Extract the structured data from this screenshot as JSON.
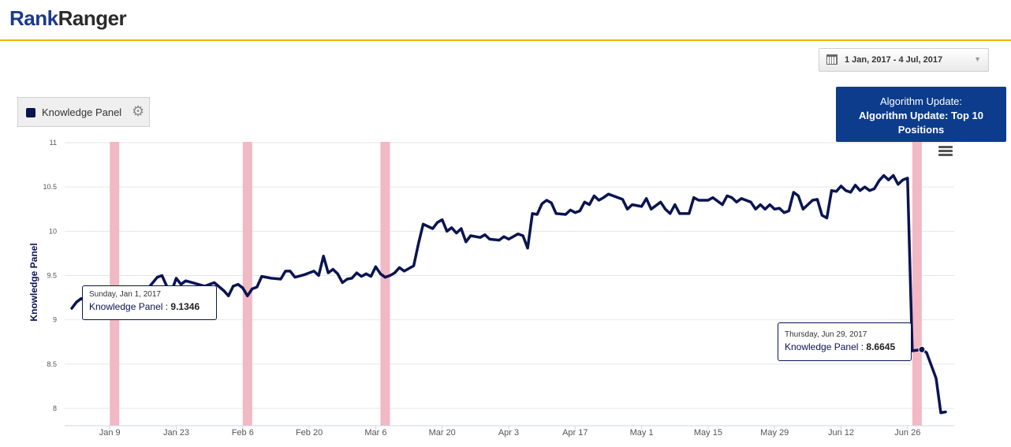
{
  "header": {
    "logo_rank": "Rank",
    "logo_ranger": "Ranger"
  },
  "date_range": {
    "label": "1 Jan, 2017 - 4 Jul, 2017"
  },
  "legend": {
    "label": "Knowledge Panel",
    "color": "#0a1451"
  },
  "algorithm_tooltip": {
    "line1": "Algorithm Update:",
    "line2": "Algorithm Update: Top 10 Positions"
  },
  "tooltips": [
    {
      "date": "Sunday, Jan 1, 2017",
      "series": "Knowledge Panel",
      "sep": " : ",
      "value": "9.1346"
    },
    {
      "date": "Thursday, Jun 29, 2017",
      "series": "Knowledge Panel",
      "sep": " : ",
      "value": "8.6645"
    }
  ],
  "chart_data": {
    "type": "line",
    "ylabel": "Knowledge Panel",
    "xlabel": "",
    "ylim": [
      7.9,
      11
    ],
    "yticks": [
      8,
      8.5,
      9,
      9.5,
      10,
      10.5,
      11
    ],
    "yticks_labels": [
      "8",
      "8.5",
      "9",
      "9.5",
      "10",
      "10.5",
      "11"
    ],
    "x_start": "2017-01-01",
    "x_end": "2017-07-04",
    "xticks": [
      "2017-01-09",
      "2017-01-23",
      "2017-02-06",
      "2017-02-20",
      "2017-03-06",
      "2017-03-20",
      "2017-04-03",
      "2017-04-17",
      "2017-05-01",
      "2017-05-15",
      "2017-05-29",
      "2017-06-12",
      "2017-06-26"
    ],
    "xtick_labels": [
      "Jan 9",
      "Jan 23",
      "Feb 6",
      "Feb 20",
      "Mar 6",
      "Mar 20",
      "Apr 3",
      "Apr 17",
      "May 1",
      "May 15",
      "May 29",
      "Jun 12",
      "Jun 26"
    ],
    "algorithm_updates": [
      "2017-01-10",
      "2017-02-07",
      "2017-03-08",
      "2017-06-28"
    ],
    "update_color": "#f2b8c3",
    "grid": true,
    "series": [
      {
        "name": "Knowledge Panel",
        "color": "#0a1451",
        "points": [
          [
            "2017-01-01",
            9.13
          ],
          [
            "2017-01-02",
            9.2
          ],
          [
            "2017-01-03",
            9.24
          ],
          [
            "2017-01-05",
            9.2
          ],
          [
            "2017-01-07",
            9.26
          ],
          [
            "2017-01-09",
            9.22
          ],
          [
            "2017-01-11",
            9.28
          ],
          [
            "2017-01-13",
            9.3
          ],
          [
            "2017-01-15",
            9.33
          ],
          [
            "2017-01-17",
            9.35
          ],
          [
            "2017-01-19",
            9.48
          ],
          [
            "2017-01-20",
            9.5
          ],
          [
            "2017-01-21",
            9.38
          ],
          [
            "2017-01-22",
            9.32
          ],
          [
            "2017-01-23",
            9.47
          ],
          [
            "2017-01-24",
            9.4
          ],
          [
            "2017-01-25",
            9.44
          ],
          [
            "2017-01-27",
            9.41
          ],
          [
            "2017-01-29",
            9.38
          ],
          [
            "2017-01-31",
            9.42
          ],
          [
            "2017-02-02",
            9.33
          ],
          [
            "2017-02-03",
            9.27
          ],
          [
            "2017-02-04",
            9.38
          ],
          [
            "2017-02-05",
            9.4
          ],
          [
            "2017-02-06",
            9.36
          ],
          [
            "2017-02-07",
            9.27
          ],
          [
            "2017-02-08",
            9.35
          ],
          [
            "2017-02-09",
            9.37
          ],
          [
            "2017-02-10",
            9.49
          ],
          [
            "2017-02-12",
            9.47
          ],
          [
            "2017-02-14",
            9.46
          ],
          [
            "2017-02-15",
            9.55
          ],
          [
            "2017-02-16",
            9.55
          ],
          [
            "2017-02-17",
            9.48
          ],
          [
            "2017-02-19",
            9.51
          ],
          [
            "2017-02-21",
            9.55
          ],
          [
            "2017-02-22",
            9.5
          ],
          [
            "2017-02-23",
            9.72
          ],
          [
            "2017-02-24",
            9.53
          ],
          [
            "2017-02-25",
            9.57
          ],
          [
            "2017-02-26",
            9.52
          ],
          [
            "2017-02-27",
            9.42
          ],
          [
            "2017-02-28",
            9.46
          ],
          [
            "2017-03-01",
            9.47
          ],
          [
            "2017-03-02",
            9.53
          ],
          [
            "2017-03-03",
            9.49
          ],
          [
            "2017-03-04",
            9.52
          ],
          [
            "2017-03-05",
            9.49
          ],
          [
            "2017-03-06",
            9.6
          ],
          [
            "2017-03-07",
            9.52
          ],
          [
            "2017-03-08",
            9.48
          ],
          [
            "2017-03-09",
            9.5
          ],
          [
            "2017-03-10",
            9.53
          ],
          [
            "2017-03-11",
            9.59
          ],
          [
            "2017-03-12",
            9.55
          ],
          [
            "2017-03-14",
            9.61
          ],
          [
            "2017-03-15",
            9.86
          ],
          [
            "2017-03-16",
            10.08
          ],
          [
            "2017-03-18",
            10.03
          ],
          [
            "2017-03-19",
            10.1
          ],
          [
            "2017-03-20",
            10.13
          ],
          [
            "2017-03-21",
            10.0
          ],
          [
            "2017-03-22",
            10.04
          ],
          [
            "2017-03-23",
            9.98
          ],
          [
            "2017-03-24",
            10.03
          ],
          [
            "2017-03-25",
            9.88
          ],
          [
            "2017-03-26",
            9.95
          ],
          [
            "2017-03-28",
            9.93
          ],
          [
            "2017-03-29",
            9.96
          ],
          [
            "2017-03-30",
            9.91
          ],
          [
            "2017-04-01",
            9.9
          ],
          [
            "2017-04-02",
            9.94
          ],
          [
            "2017-04-03",
            9.91
          ],
          [
            "2017-04-05",
            9.97
          ],
          [
            "2017-04-06",
            9.95
          ],
          [
            "2017-04-07",
            9.81
          ],
          [
            "2017-04-08",
            10.2
          ],
          [
            "2017-04-09",
            10.19
          ],
          [
            "2017-04-10",
            10.31
          ],
          [
            "2017-04-11",
            10.35
          ],
          [
            "2017-04-12",
            10.32
          ],
          [
            "2017-04-13",
            10.2
          ],
          [
            "2017-04-15",
            10.19
          ],
          [
            "2017-04-16",
            10.24
          ],
          [
            "2017-04-17",
            10.21
          ],
          [
            "2017-04-18",
            10.23
          ],
          [
            "2017-04-19",
            10.33
          ],
          [
            "2017-04-20",
            10.3
          ],
          [
            "2017-04-21",
            10.4
          ],
          [
            "2017-04-22",
            10.35
          ],
          [
            "2017-04-23",
            10.38
          ],
          [
            "2017-04-24",
            10.42
          ],
          [
            "2017-04-25",
            10.4
          ],
          [
            "2017-04-27",
            10.36
          ],
          [
            "2017-04-28",
            10.25
          ],
          [
            "2017-04-29",
            10.3
          ],
          [
            "2017-05-01",
            10.28
          ],
          [
            "2017-05-02",
            10.37
          ],
          [
            "2017-05-03",
            10.25
          ],
          [
            "2017-05-05",
            10.33
          ],
          [
            "2017-05-06",
            10.25
          ],
          [
            "2017-05-07",
            10.2
          ],
          [
            "2017-05-08",
            10.3
          ],
          [
            "2017-05-09",
            10.2
          ],
          [
            "2017-05-11",
            10.2
          ],
          [
            "2017-05-12",
            10.38
          ],
          [
            "2017-05-13",
            10.35
          ],
          [
            "2017-05-15",
            10.35
          ],
          [
            "2017-05-16",
            10.38
          ],
          [
            "2017-05-18",
            10.3
          ],
          [
            "2017-05-19",
            10.4
          ],
          [
            "2017-05-20",
            10.38
          ],
          [
            "2017-05-21",
            10.33
          ],
          [
            "2017-05-22",
            10.37
          ],
          [
            "2017-05-24",
            10.33
          ],
          [
            "2017-05-25",
            10.25
          ],
          [
            "2017-05-26",
            10.3
          ],
          [
            "2017-05-27",
            10.25
          ],
          [
            "2017-05-28",
            10.3
          ],
          [
            "2017-05-29",
            10.25
          ],
          [
            "2017-05-30",
            10.26
          ],
          [
            "2017-05-31",
            10.21
          ],
          [
            "2017-06-01",
            10.23
          ],
          [
            "2017-06-02",
            10.44
          ],
          [
            "2017-06-03",
            10.4
          ],
          [
            "2017-06-04",
            10.25
          ],
          [
            "2017-06-05",
            10.3
          ],
          [
            "2017-06-06",
            10.35
          ],
          [
            "2017-06-07",
            10.36
          ],
          [
            "2017-06-08",
            10.18
          ],
          [
            "2017-06-09",
            10.15
          ],
          [
            "2017-06-10",
            10.46
          ],
          [
            "2017-06-11",
            10.45
          ],
          [
            "2017-06-12",
            10.51
          ],
          [
            "2017-06-13",
            10.46
          ],
          [
            "2017-06-14",
            10.44
          ],
          [
            "2017-06-15",
            10.52
          ],
          [
            "2017-06-16",
            10.46
          ],
          [
            "2017-06-17",
            10.5
          ],
          [
            "2017-06-18",
            10.46
          ],
          [
            "2017-06-19",
            10.48
          ],
          [
            "2017-06-20",
            10.57
          ],
          [
            "2017-06-21",
            10.63
          ],
          [
            "2017-06-22",
            10.58
          ],
          [
            "2017-06-23",
            10.63
          ],
          [
            "2017-06-24",
            10.53
          ],
          [
            "2017-06-25",
            10.58
          ],
          [
            "2017-06-26",
            10.6
          ],
          [
            "2017-06-27",
            8.65
          ],
          [
            "2017-06-29",
            8.6645
          ],
          [
            "2017-06-30",
            8.63
          ],
          [
            "2017-07-02",
            8.34
          ],
          [
            "2017-07-03",
            7.95
          ],
          [
            "2017-07-04",
            7.96
          ]
        ]
      }
    ]
  }
}
